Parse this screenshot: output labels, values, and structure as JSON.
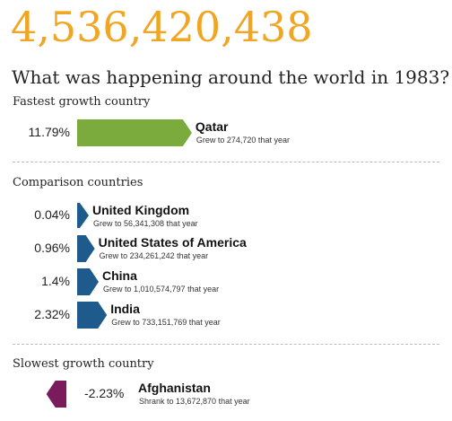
{
  "header": {
    "population": "4,536,420,438",
    "headline": "What was happening around the world in 1983?"
  },
  "sections": {
    "fastest": "Fastest growth country",
    "comparison": "Comparison countries",
    "slowest": "Slowest growth country"
  },
  "colors": {
    "accent": "#f0a623",
    "fastest": "#7aab3c",
    "comparison": "#1e5a8c",
    "slowest": "#7a1b5c"
  },
  "chart_data": {
    "type": "bar",
    "categories": [
      "Qatar",
      "United Kingdom",
      "United States of America",
      "China",
      "India",
      "Afghanistan"
    ],
    "values": [
      11.79,
      0.04,
      0.96,
      1.4,
      2.32,
      -2.23
    ],
    "labels": [
      "11.79%",
      "0.04%",
      "0.96%",
      "1.4%",
      "2.32%",
      "-2.23%"
    ],
    "notes": [
      "Grew to 274,720 that year",
      "Grew to 56,341,308 that year",
      "Grew to 234,261,242 that year",
      "Grew to 1,010,574,797 that year",
      "Grew to 733,151,769 that year",
      "Shrank to 13,672,870 that year"
    ],
    "groups": [
      "fastest",
      "comparison",
      "comparison",
      "comparison",
      "comparison",
      "slowest"
    ]
  }
}
